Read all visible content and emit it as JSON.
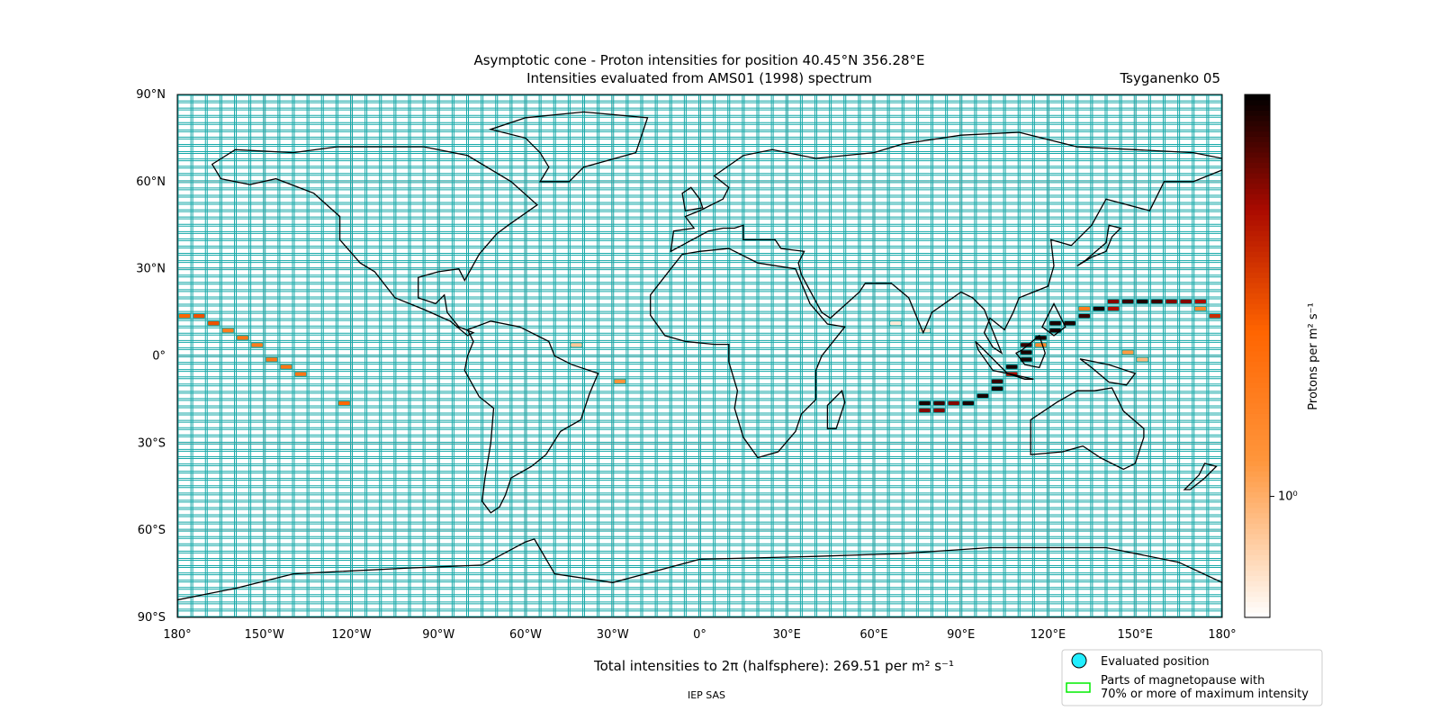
{
  "chart_data": {
    "type": "gridmap",
    "title": "Asymptotic cone - Proton intensities for position 40.45°N 356.28°E",
    "subtitle": "Intensities evaluated from AMS01 (1998) spectrum",
    "model": "Tsyganenko 05",
    "total_label": "Total intensities to 2π (halfsphere): 269.51 per m² s⁻¹",
    "footer": "IEP SAS",
    "colorbar_label": "Protons per m² s⁻¹",
    "xlim": [
      -180,
      180
    ],
    "ylim": [
      -90,
      90
    ],
    "xticks": [
      {
        "value": -180,
        "label": "180°"
      },
      {
        "value": -150,
        "label": "150°W"
      },
      {
        "value": -120,
        "label": "120°W"
      },
      {
        "value": -90,
        "label": "90°W"
      },
      {
        "value": -60,
        "label": "60°W"
      },
      {
        "value": -30,
        "label": "30°W"
      },
      {
        "value": 0,
        "label": "0°"
      },
      {
        "value": 30,
        "label": "30°E"
      },
      {
        "value": 60,
        "label": "60°E"
      },
      {
        "value": 90,
        "label": "90°E"
      },
      {
        "value": 120,
        "label": "120°E"
      },
      {
        "value": 150,
        "label": "150°E"
      },
      {
        "value": 180,
        "label": "180°"
      }
    ],
    "yticks": [
      {
        "value": 90,
        "label": "90°N"
      },
      {
        "value": 60,
        "label": "60°N"
      },
      {
        "value": 30,
        "label": "30°N"
      },
      {
        "value": 0,
        "label": "0°"
      },
      {
        "value": -30,
        "label": "30°S"
      },
      {
        "value": -60,
        "label": "60°S"
      },
      {
        "value": -90,
        "label": "90°S"
      }
    ],
    "cell_size": [
      5,
      2.5
    ],
    "clim": [
      0.5,
      10
    ],
    "cticks": [
      {
        "value": 1,
        "label": "10⁰"
      }
    ],
    "log_scale": true,
    "cells": {
      "lon": [
        -180,
        -175,
        -170,
        -165,
        -160,
        -155,
        -150,
        -145,
        -140,
        -125,
        -45,
        -30,
        130,
        130,
        135,
        140,
        140,
        145,
        150,
        155,
        160,
        165,
        170,
        170,
        175,
        125,
        120,
        120,
        115,
        115,
        110,
        110,
        110,
        105,
        105,
        100,
        100,
        95,
        90,
        85,
        80,
        75,
        75,
        80,
        145,
        150,
        65,
        75
      ],
      "lat": [
        12.5,
        12.5,
        10,
        7.5,
        5,
        2.5,
        -2.5,
        -5,
        -7.5,
        -17.5,
        2.5,
        -10,
        15,
        12.5,
        15,
        15,
        17.5,
        17.5,
        17.5,
        17.5,
        17.5,
        17.5,
        17.5,
        15,
        12.5,
        10,
        10,
        7.5,
        5,
        2.5,
        2.5,
        0,
        -2.5,
        -5,
        -7.5,
        -10,
        -12.5,
        -15,
        -17.5,
        -17.5,
        -17.5,
        -17.5,
        -20,
        -20,
        0,
        -2.5,
        10,
        7.5
      ],
      "values": [
        2.5,
        3,
        3,
        1.8,
        2,
        1.8,
        2,
        2,
        2,
        2.5,
        0.8,
        1.3,
        1.8,
        8,
        9,
        5,
        6,
        8,
        9,
        8,
        6,
        6,
        5,
        1.5,
        4,
        9,
        9,
        9,
        9,
        1.5,
        8,
        9,
        9,
        9,
        5,
        8,
        9,
        9,
        9,
        6,
        8,
        9,
        6,
        6,
        1.2,
        0.9,
        0.6,
        0.6
      ]
    },
    "legend": {
      "items": [
        "Evaluated position",
        "Parts of magnetopause with",
        "70% or more of maximum intensity"
      ],
      "colors": [
        "#22eeff",
        "#00ee00"
      ]
    }
  }
}
